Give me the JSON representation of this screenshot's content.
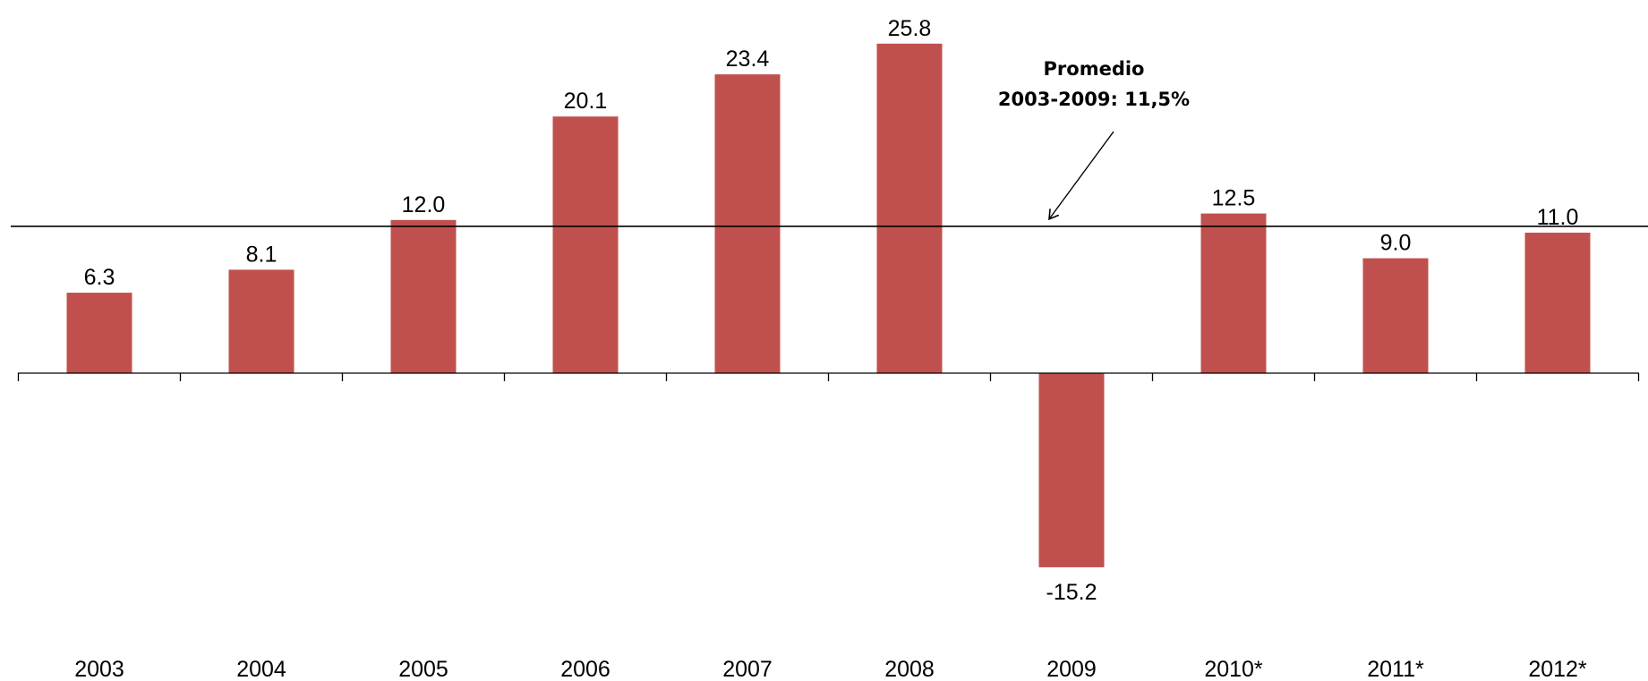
{
  "chart_data": {
    "type": "bar",
    "categories": [
      "2003",
      "2004",
      "2005",
      "2006",
      "2007",
      "2008",
      "2009",
      "2010*",
      "2011*",
      "2012*"
    ],
    "values": [
      6.3,
      8.1,
      12.0,
      20.1,
      23.4,
      25.8,
      -15.2,
      12.5,
      9.0,
      11.0
    ],
    "value_labels": [
      "6.3",
      "8.1",
      "12.0",
      "20.1",
      "23.4",
      "25.8",
      "-15.2",
      "12.5",
      "9.0",
      "11.0"
    ],
    "title": "",
    "xlabel": "",
    "ylabel": "",
    "ylim": [
      -20,
      28
    ],
    "grid": false,
    "legend": "none",
    "bar_color": "#C0504D",
    "axis_color": "#000000",
    "reference_line": {
      "value": 11.5,
      "label_line1": "Promedio",
      "label_line2": "2003-2009: 11,5%"
    }
  }
}
